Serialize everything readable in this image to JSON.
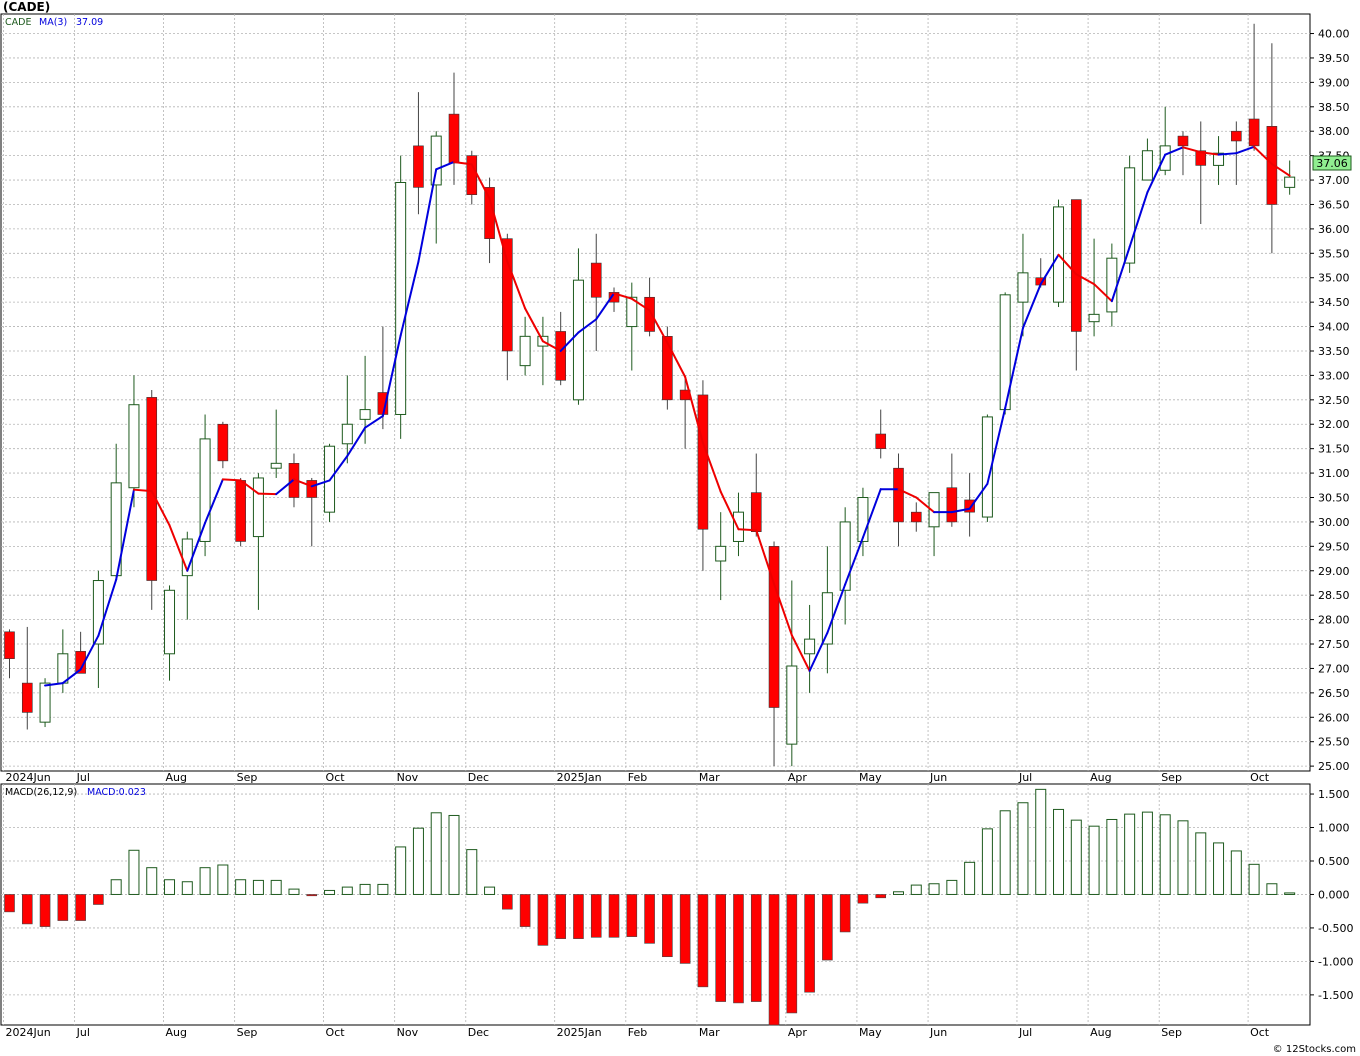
{
  "header": {
    "symbol_title": "(CADE)",
    "price_label": "CADE",
    "ma_label": "MA(3)",
    "ma_value": "37.09",
    "macd_params": "MACD(26,12,9)",
    "macd_value": "MACD:0.023",
    "last_price": "37.06",
    "watermark": "© 12Stocks.com"
  },
  "colors": {
    "up_candle_border": "#1e5a1e",
    "up_candle_fill": "#ffffff",
    "down_candle": "#ff0000",
    "ma_up": "#0000dd",
    "ma_down": "#ee0000",
    "macd_pos_border": "#1e5a1e",
    "macd_neg_fill": "#ff0000",
    "grid": "#b4b4b4",
    "last_price_badge": "#90ee90"
  },
  "chart_data": [
    {
      "type": "candlestick",
      "panel": "price",
      "title": "(CADE)",
      "ylim": [
        24.9,
        40.4
      ],
      "y_ticks": [
        "25.00",
        "25.50",
        "26.00",
        "26.50",
        "27.00",
        "27.50",
        "28.00",
        "28.50",
        "29.00",
        "29.50",
        "30.00",
        "30.50",
        "31.00",
        "31.50",
        "32.00",
        "32.50",
        "33.00",
        "33.50",
        "34.00",
        "34.50",
        "35.00",
        "35.50",
        "36.00",
        "36.50",
        "37.00",
        "37.50",
        "38.00",
        "38.50",
        "39.00",
        "39.50",
        "40.00"
      ],
      "x_labels": [
        {
          "label": "2024Jun",
          "index": 0
        },
        {
          "label": "Jul",
          "index": 4
        },
        {
          "label": "Aug",
          "index": 9
        },
        {
          "label": "Sep",
          "index": 13
        },
        {
          "label": "Oct",
          "index": 18
        },
        {
          "label": "Nov",
          "index": 22
        },
        {
          "label": "Dec",
          "index": 26
        },
        {
          "label": "2025Jan",
          "index": 31
        },
        {
          "label": "Feb",
          "index": 35
        },
        {
          "label": "Mar",
          "index": 39
        },
        {
          "label": "Apr",
          "index": 44
        },
        {
          "label": "May",
          "index": 48
        },
        {
          "label": "Jun",
          "index": 52
        },
        {
          "label": "Jul",
          "index": 57
        },
        {
          "label": "Aug",
          "index": 61
        },
        {
          "label": "Sep",
          "index": 65
        },
        {
          "label": "Oct",
          "index": 70
        }
      ],
      "ohlc": [
        [
          27.75,
          27.8,
          26.8,
          27.2
        ],
        [
          26.7,
          27.85,
          25.75,
          26.1
        ],
        [
          25.9,
          26.8,
          25.8,
          26.7
        ],
        [
          26.7,
          27.8,
          26.5,
          27.3
        ],
        [
          27.35,
          27.75,
          26.9,
          26.9
        ],
        [
          27.5,
          29.0,
          26.6,
          28.8
        ],
        [
          28.9,
          31.6,
          28.8,
          30.8
        ],
        [
          30.7,
          33.0,
          30.3,
          32.4
        ],
        [
          32.55,
          32.7,
          28.2,
          28.8
        ],
        [
          27.3,
          28.7,
          26.75,
          28.6
        ],
        [
          28.9,
          29.8,
          28.0,
          29.65
        ],
        [
          29.6,
          32.2,
          29.3,
          31.7
        ],
        [
          32.0,
          32.05,
          31.1,
          31.25
        ],
        [
          30.85,
          30.9,
          29.5,
          29.6
        ],
        [
          29.7,
          31.0,
          28.2,
          30.9
        ],
        [
          31.1,
          32.3,
          30.9,
          31.2
        ],
        [
          31.2,
          31.4,
          30.3,
          30.5
        ],
        [
          30.85,
          30.9,
          29.5,
          30.5
        ],
        [
          30.2,
          31.6,
          30.0,
          31.55
        ],
        [
          31.6,
          33.0,
          31.2,
          32.0
        ],
        [
          32.1,
          33.4,
          31.6,
          32.3
        ],
        [
          32.65,
          34.0,
          31.9,
          32.2
        ],
        [
          32.2,
          37.5,
          31.7,
          36.95
        ],
        [
          37.7,
          38.8,
          36.3,
          36.85
        ],
        [
          36.9,
          38.0,
          35.7,
          37.9
        ],
        [
          38.35,
          39.2,
          36.9,
          37.35
        ],
        [
          37.5,
          37.6,
          36.5,
          36.7
        ],
        [
          36.85,
          37.05,
          35.3,
          35.8
        ],
        [
          35.8,
          35.9,
          32.9,
          33.5
        ],
        [
          33.2,
          34.2,
          33.0,
          33.8
        ],
        [
          33.6,
          34.2,
          32.8,
          33.8
        ],
        [
          33.9,
          34.3,
          32.8,
          32.9
        ],
        [
          32.5,
          35.6,
          32.4,
          34.95
        ],
        [
          35.3,
          35.9,
          33.5,
          34.6
        ],
        [
          34.7,
          34.8,
          34.3,
          34.5
        ],
        [
          34.0,
          34.9,
          33.1,
          34.6
        ],
        [
          34.6,
          35.0,
          33.8,
          33.9
        ],
        [
          33.8,
          34.0,
          32.3,
          32.5
        ],
        [
          32.7,
          33.0,
          31.5,
          32.5
        ],
        [
          32.6,
          32.9,
          29.0,
          29.85
        ],
        [
          29.2,
          30.2,
          28.4,
          29.5
        ],
        [
          29.6,
          30.6,
          29.3,
          30.2
        ],
        [
          30.6,
          31.4,
          29.7,
          29.8
        ],
        [
          29.5,
          29.6,
          25.0,
          26.2
        ],
        [
          25.45,
          28.8,
          25.0,
          27.05
        ],
        [
          27.3,
          28.3,
          26.5,
          27.6
        ],
        [
          27.5,
          29.5,
          26.9,
          28.55
        ],
        [
          28.6,
          30.3,
          27.9,
          30.0
        ],
        [
          29.6,
          30.7,
          29.3,
          30.5
        ],
        [
          31.8,
          32.3,
          31.3,
          31.5
        ],
        [
          31.1,
          31.4,
          29.5,
          30.0
        ],
        [
          30.2,
          30.4,
          29.8,
          30.0
        ],
        [
          29.9,
          30.6,
          29.3,
          30.6
        ],
        [
          30.7,
          31.4,
          29.9,
          30.0
        ],
        [
          30.45,
          31.0,
          29.7,
          30.2
        ],
        [
          30.1,
          32.2,
          30.0,
          32.15
        ],
        [
          32.3,
          34.7,
          32.2,
          34.65
        ],
        [
          34.5,
          35.9,
          33.8,
          35.1
        ],
        [
          35.0,
          35.4,
          34.8,
          34.85
        ],
        [
          34.5,
          36.6,
          34.4,
          36.45
        ],
        [
          36.6,
          36.6,
          33.1,
          33.9
        ],
        [
          34.1,
          35.8,
          33.8,
          34.25
        ],
        [
          34.3,
          35.7,
          34.0,
          35.4
        ],
        [
          35.3,
          37.5,
          35.1,
          37.25
        ],
        [
          37.0,
          37.85,
          37.0,
          37.6
        ],
        [
          37.2,
          38.5,
          37.1,
          37.7
        ],
        [
          37.9,
          38.0,
          37.1,
          37.7
        ],
        [
          37.6,
          38.2,
          36.1,
          37.3
        ],
        [
          37.3,
          37.9,
          36.9,
          37.55
        ],
        [
          38.0,
          38.2,
          36.9,
          37.8
        ],
        [
          38.25,
          40.2,
          37.6,
          37.7
        ],
        [
          38.1,
          39.8,
          35.5,
          36.5
        ],
        [
          36.85,
          37.4,
          36.7,
          37.06
        ]
      ],
      "ma3": [
        null,
        null,
        26.65,
        26.7,
        26.98,
        27.67,
        28.82,
        30.66,
        30.63,
        29.93,
        29.0,
        29.98,
        30.87,
        30.85,
        30.58,
        30.57,
        30.87,
        30.73,
        30.85,
        31.35,
        31.93,
        32.17,
        33.82,
        35.33,
        37.22,
        37.37,
        37.32,
        36.62,
        35.33,
        34.37,
        33.7,
        33.5,
        33.88,
        34.15,
        34.68,
        34.57,
        34.33,
        33.67,
        32.97,
        31.62,
        30.62,
        29.85,
        29.83,
        28.73,
        27.68,
        26.95,
        27.73,
        28.72,
        29.68,
        30.67,
        30.67,
        30.5,
        30.2,
        30.2,
        30.27,
        30.78,
        32.33,
        33.97,
        34.87,
        35.47,
        35.07,
        34.87,
        34.52,
        35.63,
        36.75,
        37.52,
        37.67,
        37.57,
        37.52,
        37.55,
        37.68,
        37.33,
        37.09
      ],
      "last_price": 37.06
    },
    {
      "type": "bar",
      "panel": "macd",
      "title": "MACD(26,12,9)",
      "ylim": [
        -1.95,
        1.65
      ],
      "y_ticks": [
        "-1.500",
        "-1.000",
        "-0.500",
        "0.000",
        "0.500",
        "1.000",
        "1.500"
      ],
      "values": [
        -0.26,
        -0.44,
        -0.48,
        -0.39,
        -0.39,
        -0.15,
        0.22,
        0.66,
        0.4,
        0.22,
        0.19,
        0.4,
        0.44,
        0.22,
        0.21,
        0.21,
        0.08,
        -0.02,
        0.06,
        0.11,
        0.15,
        0.15,
        0.71,
        0.99,
        1.22,
        1.18,
        0.67,
        0.11,
        -0.22,
        -0.48,
        -0.76,
        -0.66,
        -0.66,
        -0.64,
        -0.64,
        -0.63,
        -0.73,
        -0.93,
        -1.03,
        -1.38,
        -1.6,
        -1.62,
        -1.6,
        -1.95,
        -1.77,
        -1.46,
        -0.98,
        -0.56,
        -0.13,
        -0.05,
        0.04,
        0.14,
        0.16,
        0.21,
        0.48,
        0.98,
        1.25,
        1.37,
        1.57,
        1.27,
        1.11,
        1.02,
        1.12,
        1.2,
        1.23,
        1.19,
        1.1,
        0.92,
        0.77,
        0.65,
        0.45,
        0.16,
        0.023
      ]
    }
  ]
}
